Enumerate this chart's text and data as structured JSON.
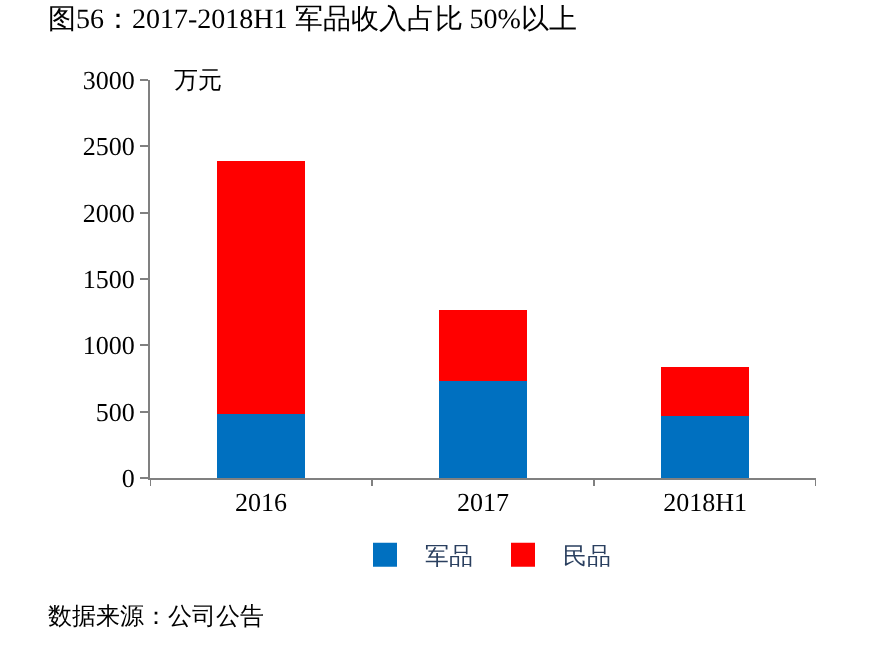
{
  "chart_data": {
    "type": "bar",
    "stacked": true,
    "title": "图56：2017-2018H1 军品收入占比 50%以上",
    "categories": [
      "2016",
      "2017",
      "2018H1"
    ],
    "series": [
      {
        "name": "军品",
        "color": "#0070c0",
        "values": [
          480,
          730,
          470
        ]
      },
      {
        "name": "民品",
        "color": "#ff0000",
        "values": [
          1910,
          540,
          370
        ]
      }
    ],
    "ylim": [
      0,
      3000
    ],
    "yticks": [
      0,
      500,
      1000,
      1500,
      2000,
      2500,
      3000
    ],
    "legend": "bottom",
    "annotations": [
      "万元",
      "数据来源：公司公告"
    ]
  }
}
